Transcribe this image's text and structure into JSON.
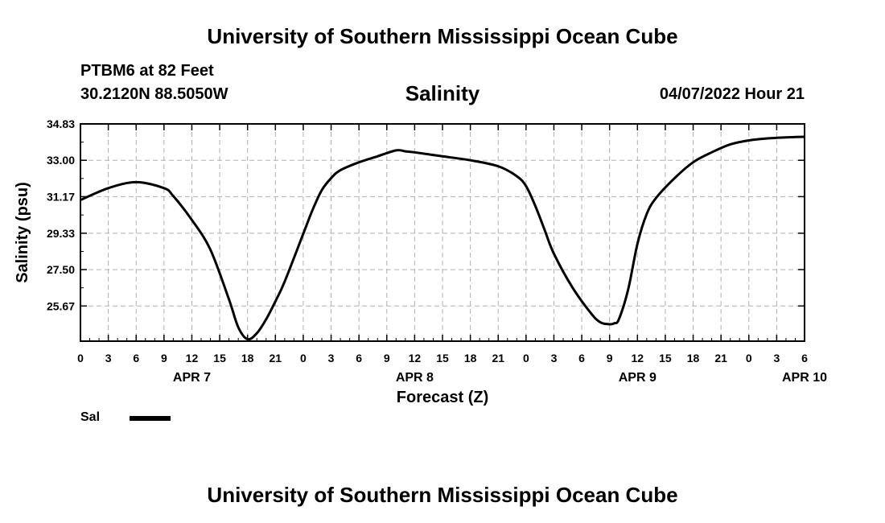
{
  "header": {
    "title_top": "University of Southern Mississippi Ocean Cube",
    "station": "PTBM6 at 82 Feet",
    "coords": "30.2120N  88.5050W",
    "chart_title": "Salinity",
    "datetime": "04/07/2022 Hour 21",
    "title_bottom": "University of Southern Mississippi Ocean Cube"
  },
  "legend": {
    "label": "Sal",
    "color": "#000000"
  },
  "chart_data": {
    "type": "line",
    "title": "Salinity",
    "xlabel": "Forecast (Z)",
    "ylabel": "Salinity (psu)",
    "ylim": [
      23.9,
      34.83
    ],
    "yticks": [
      "34.83",
      "33.00",
      "31.17",
      "29.33",
      "27.50",
      "25.67"
    ],
    "xlim": [
      0,
      78
    ],
    "xticks": [
      "0",
      "3",
      "6",
      "9",
      "12",
      "15",
      "18",
      "21",
      "0",
      "3",
      "6",
      "9",
      "12",
      "15",
      "18",
      "21",
      "0",
      "3",
      "6",
      "9",
      "12",
      "15",
      "18",
      "21",
      "0",
      "3",
      "6"
    ],
    "date_labels": [
      {
        "label": "APR 7",
        "x": 12
      },
      {
        "label": "APR 8",
        "x": 36
      },
      {
        "label": "APR 9",
        "x": 60
      },
      {
        "label": "APR 10",
        "x": 78
      }
    ],
    "grid": true,
    "series": [
      {
        "name": "Sal",
        "x": [
          0,
          3,
          6,
          9,
          10,
          12,
          14,
          16,
          17,
          18,
          19,
          20,
          21,
          22,
          24,
          25,
          26,
          27,
          28,
          30,
          32,
          34,
          35,
          36,
          39,
          42,
          45,
          47,
          48,
          49,
          50,
          51,
          53,
          55,
          56,
          57,
          57.5,
          58,
          59,
          60,
          61,
          62,
          64,
          66,
          68,
          70,
          72,
          74,
          76,
          78
        ],
        "y": [
          31.0,
          31.6,
          31.9,
          31.6,
          31.2,
          30.0,
          28.5,
          26.0,
          24.6,
          24.0,
          24.3,
          25.0,
          25.9,
          26.9,
          29.3,
          30.5,
          31.5,
          32.1,
          32.5,
          32.9,
          33.2,
          33.5,
          33.45,
          33.4,
          33.2,
          33.0,
          32.7,
          32.2,
          31.7,
          30.7,
          29.5,
          28.3,
          26.6,
          25.3,
          24.85,
          24.75,
          24.8,
          25.0,
          26.5,
          28.8,
          30.3,
          31.1,
          32.1,
          32.9,
          33.4,
          33.8,
          34.0,
          34.1,
          34.15,
          34.18
        ]
      }
    ]
  }
}
